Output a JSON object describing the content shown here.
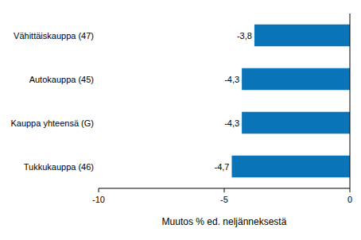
{
  "chart_data": {
    "type": "bar",
    "orientation": "horizontal",
    "categories": [
      "Vähittäiskauppa (47)",
      "Autokauppa (45)",
      "Kauppa yhteensä (G)",
      "Tukkukauppa (46)"
    ],
    "values": [
      -3.8,
      -4.3,
      -4.3,
      -4.7
    ],
    "value_labels": [
      "-3,8",
      "-4,3",
      "-4,3",
      "-4,7"
    ],
    "color": "#0a74b8",
    "data_labels": true,
    "x_label": "Muutos % ed. neljänneksestä",
    "xlim": [
      -10,
      0
    ],
    "xticks": [
      -10,
      -5,
      0
    ],
    "grid": false
  }
}
